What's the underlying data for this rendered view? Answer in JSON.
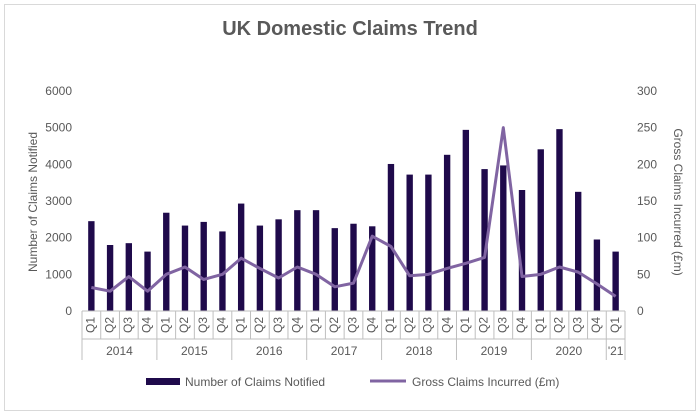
{
  "chart_data": {
    "type": "bar+line",
    "title": "UK Domestic Claims Trend",
    "ylabel_left": "Number of Claims Notified",
    "ylabel_right": "Gross Claims Incurred (£m)",
    "ylim_left": [
      0,
      6000
    ],
    "ylim_right": [
      0,
      300
    ],
    "yticks_left": [
      0,
      1000,
      2000,
      3000,
      4000,
      5000,
      6000
    ],
    "yticks_right": [
      0,
      50,
      100,
      150,
      200,
      250,
      300
    ],
    "categories": [
      "Q1",
      "Q2",
      "Q3",
      "Q4",
      "Q1",
      "Q2",
      "Q3",
      "Q4",
      "Q1",
      "Q2",
      "Q3",
      "Q4",
      "Q1",
      "Q2",
      "Q3",
      "Q4",
      "Q1",
      "Q2",
      "Q3",
      "Q4",
      "Q1",
      "Q2",
      "Q3",
      "Q4",
      "Q1",
      "Q2",
      "Q3",
      "Q4",
      "Q1"
    ],
    "years": [
      {
        "label": "2014",
        "count": 4
      },
      {
        "label": "2015",
        "count": 4
      },
      {
        "label": "2016",
        "count": 4
      },
      {
        "label": "2017",
        "count": 4
      },
      {
        "label": "2018",
        "count": 4
      },
      {
        "label": "2019",
        "count": 4
      },
      {
        "label": "2020",
        "count": 4
      },
      {
        "label": "'21",
        "count": 1
      }
    ],
    "series": [
      {
        "name": "Number of Claims Notified",
        "type": "bar",
        "axis": "left",
        "color": "#1f0a4b",
        "values": [
          2450,
          1800,
          1850,
          1620,
          2680,
          2330,
          2430,
          2170,
          2930,
          2330,
          2500,
          2750,
          2750,
          2260,
          2380,
          2310,
          4010,
          3720,
          3720,
          4260,
          4940,
          3870,
          3970,
          3300,
          4410,
          4960,
          3250,
          1950,
          1620
        ]
      },
      {
        "name": "Gross Claims Incurred (£m)",
        "type": "line",
        "axis": "right",
        "color": "#8064a2",
        "values": [
          32,
          27,
          47,
          27,
          50,
          60,
          43,
          50,
          72,
          58,
          45,
          60,
          50,
          33,
          38,
          102,
          88,
          48,
          50,
          58,
          65,
          73,
          250,
          47,
          50,
          60,
          53,
          37,
          20
        ]
      }
    ],
    "grid": false,
    "legend_position": "bottom"
  }
}
